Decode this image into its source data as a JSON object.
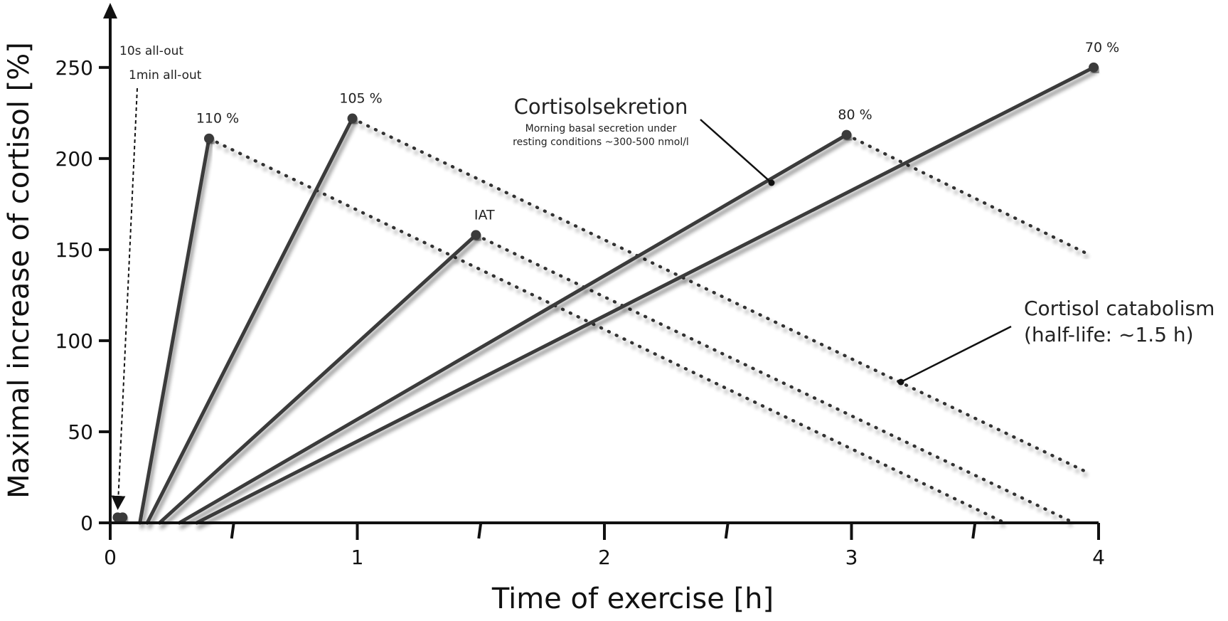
{
  "chart_data": {
    "type": "line",
    "xlabel": "Time of exercise [h]",
    "ylabel": "Maximal increase of cortisol [%]",
    "xlim": [
      0,
      4
    ],
    "ylim": [
      0,
      280
    ],
    "x_ticks": [
      {
        "value": 0,
        "label": "0"
      },
      {
        "value": 1,
        "label": "1"
      },
      {
        "value": 2,
        "label": "2"
      },
      {
        "value": 3,
        "label": "3"
      },
      {
        "value": 4,
        "label": "4"
      }
    ],
    "x_minor_ticks": [
      0.5,
      1.5,
      2.5,
      3.5
    ],
    "y_ticks": [
      {
        "value": 0,
        "label": "0"
      },
      {
        "value": 50,
        "label": "50"
      },
      {
        "value": 100,
        "label": "100"
      },
      {
        "value": 150,
        "label": "150"
      },
      {
        "value": 200,
        "label": "200"
      },
      {
        "value": 250,
        "label": "250"
      }
    ],
    "grid": false,
    "series": [
      {
        "label": "10s all-out",
        "secretion": [
          [
            0.0,
            3
          ],
          [
            0.03,
            3
          ]
        ],
        "catabolism": []
      },
      {
        "label": "1min all-out",
        "secretion": [
          [
            0.03,
            3
          ],
          [
            0.05,
            3
          ]
        ],
        "catabolism": []
      },
      {
        "label": "110 %",
        "secretion": [
          [
            0.12,
            0
          ],
          [
            0.4,
            211
          ]
        ],
        "catabolism": [
          [
            0.4,
            211
          ],
          [
            3.62,
            0
          ]
        ]
      },
      {
        "label": "105 %",
        "secretion": [
          [
            0.15,
            0
          ],
          [
            0.98,
            222
          ]
        ],
        "catabolism": [
          [
            0.98,
            222
          ],
          [
            3.95,
            28
          ]
        ]
      },
      {
        "label": "IAT",
        "secretion": [
          [
            0.2,
            0
          ],
          [
            1.48,
            158
          ]
        ],
        "catabolism": [
          [
            1.48,
            158
          ],
          [
            3.9,
            0
          ]
        ]
      },
      {
        "label": "80 %",
        "secretion": [
          [
            0.28,
            0
          ],
          [
            2.98,
            213
          ]
        ],
        "catabolism": [
          [
            2.98,
            213
          ],
          [
            3.95,
            148
          ]
        ]
      },
      {
        "label": "70 %",
        "secretion": [
          [
            0.35,
            0
          ],
          [
            3.98,
            250
          ]
        ],
        "catabolism": []
      }
    ],
    "annotations": [
      {
        "id": "secretion",
        "title": "Cortisolsekretion",
        "lines": [
          "Morning basal secretion under",
          "resting conditions ~300-500 nmol/l"
        ],
        "pointer": [
          2.7,
          191
        ]
      },
      {
        "id": "catabolism",
        "lines": [
          "Cortisol catabolism",
          "(half-life: ~1.5 h)"
        ],
        "pointer": [
          3.22,
          79
        ]
      }
    ]
  }
}
